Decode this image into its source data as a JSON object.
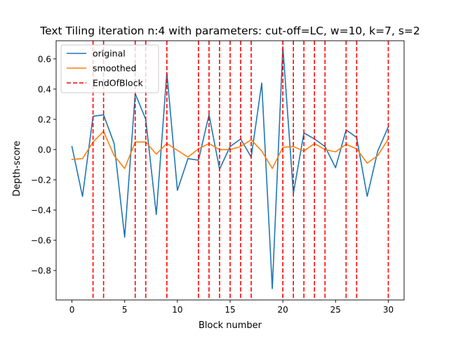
{
  "chart_data": {
    "type": "line",
    "title": "Text Tiling iteration n:4 with parameters: cut-off=LC, w=10, k=7, s=2",
    "xlabel": "Block number",
    "ylabel": "Depth-score",
    "xlim": [
      -1.5,
      31.5
    ],
    "ylim": [
      -0.995,
      0.72
    ],
    "xticks": [
      0,
      5,
      10,
      15,
      20,
      25,
      30
    ],
    "xtick_labels": [
      "0",
      "5",
      "10",
      "15",
      "20",
      "25",
      "30"
    ],
    "yticks": [
      -0.8,
      -0.6,
      -0.4,
      -0.2,
      0.0,
      0.2,
      0.4,
      0.6
    ],
    "ytick_labels": [
      "−0.8",
      "−0.6",
      "−0.4",
      "−0.2",
      "0.0",
      "0.2",
      "0.4",
      "0.6"
    ],
    "grid": false,
    "legend_position": "top-left",
    "x": [
      0,
      1,
      2,
      3,
      4,
      5,
      6,
      7,
      8,
      9,
      10,
      11,
      12,
      13,
      14,
      15,
      16,
      17,
      18,
      19,
      20,
      21,
      22,
      23,
      24,
      25,
      26,
      27,
      28,
      29,
      30
    ],
    "series": [
      {
        "name": "original",
        "color": "#1f77b4",
        "style": "solid",
        "values": [
          0.02,
          -0.31,
          0.22,
          0.23,
          0.04,
          -0.58,
          0.37,
          0.2,
          -0.43,
          0.51,
          -0.27,
          -0.06,
          -0.07,
          0.23,
          -0.13,
          0.02,
          0.07,
          -0.05,
          0.44,
          -0.92,
          0.68,
          -0.29,
          0.11,
          0.07,
          0.02,
          -0.12,
          0.13,
          0.08,
          -0.31,
          -0.01,
          0.15
        ]
      },
      {
        "name": "smoothed",
        "color": "#ff7f0e",
        "style": "solid",
        "values": [
          -0.065,
          -0.06,
          0.05,
          0.12,
          -0.04,
          -0.125,
          0.05,
          0.05,
          -0.03,
          0.04,
          -0.005,
          -0.05,
          0.005,
          0.04,
          0.0,
          0.0,
          0.02,
          0.065,
          -0.01,
          -0.125,
          0.015,
          0.02,
          -0.01,
          0.04,
          0.0,
          -0.015,
          0.035,
          0.005,
          -0.09,
          -0.04,
          0.07
        ]
      }
    ],
    "vlines": {
      "name": "EndOfBlock",
      "color": "#ff0000",
      "style": "dashed",
      "x": [
        2,
        3,
        6,
        7,
        9,
        12,
        13,
        14,
        15,
        16,
        17,
        20,
        21,
        22,
        23,
        24,
        26,
        27,
        30
      ]
    }
  }
}
